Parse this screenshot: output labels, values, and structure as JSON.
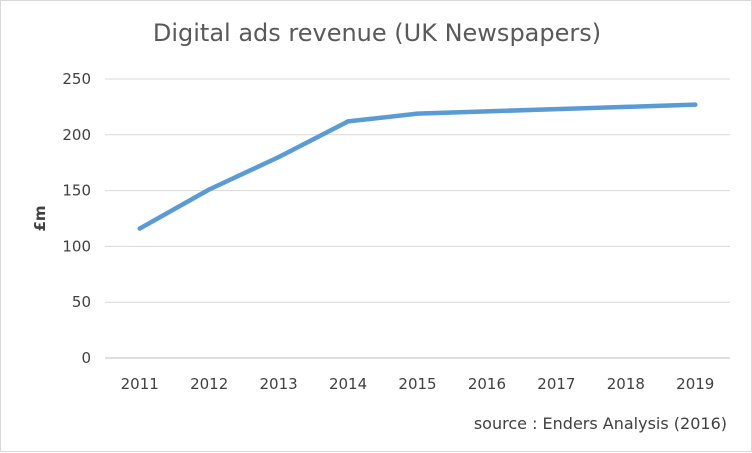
{
  "chart_data": {
    "type": "line",
    "title": "Digital ads revenue (UK Newspapers)",
    "xlabel": "",
    "ylabel": "£m",
    "x": [
      "2011",
      "2012",
      "2013",
      "2014",
      "2015",
      "2016",
      "2017",
      "2018",
      "2019"
    ],
    "series": [
      {
        "values": [
          116,
          151,
          180,
          212,
          219,
          221,
          223,
          225,
          227
        ],
        "color": "#5b9bd5"
      }
    ],
    "ylim": [
      0,
      250
    ],
    "yticks": [
      0,
      50,
      100,
      150,
      200,
      250
    ],
    "grid": true,
    "legend": "none"
  },
  "footer": {
    "source": "source : Enders Analysis (2016)"
  }
}
